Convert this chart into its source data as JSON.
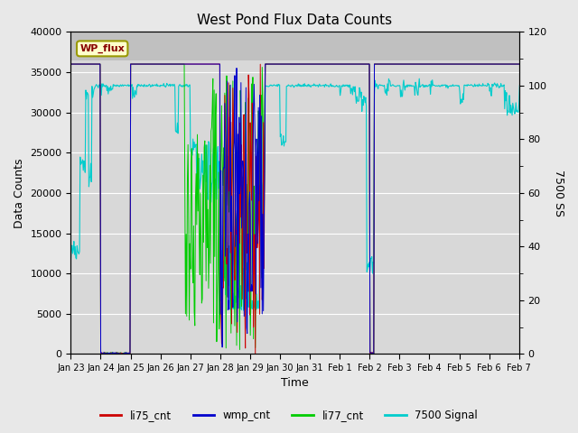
{
  "title": "West Pond Flux Data Counts",
  "ylabel_left": "Data Counts",
  "ylabel_right": "7500 SS",
  "xlabel": "Time",
  "ylim_left": [
    0,
    40000
  ],
  "ylim_right": [
    0,
    120
  ],
  "fig_facecolor": "#e8e8e8",
  "plot_facecolor": "#d8d8d8",
  "top_band_color": "#c8c8c8",
  "legend_label": "WP_flux",
  "legend_box_facecolor": "#ffffcc",
  "legend_box_edgecolor": "#999900",
  "series_colors": {
    "li75": "#cc0000",
    "wmp": "#0000cc",
    "li77": "#00cc00",
    "sig": "#00cccc"
  },
  "tick_labels": [
    "Jan 23",
    "Jan 24",
    "Jan 25",
    "Jan 26",
    "Jan 27",
    "Jan 28",
    "Jan 29",
    "Jan 30",
    "Jan 31",
    "Feb 1",
    "Feb 2",
    "Feb 3",
    "Feb 4",
    "Feb 5",
    "Feb 6",
    "Feb 7"
  ],
  "tick_positions": [
    0,
    1,
    2,
    3,
    4,
    5,
    6,
    7,
    8,
    9,
    10,
    11,
    12,
    13,
    14,
    15
  ]
}
